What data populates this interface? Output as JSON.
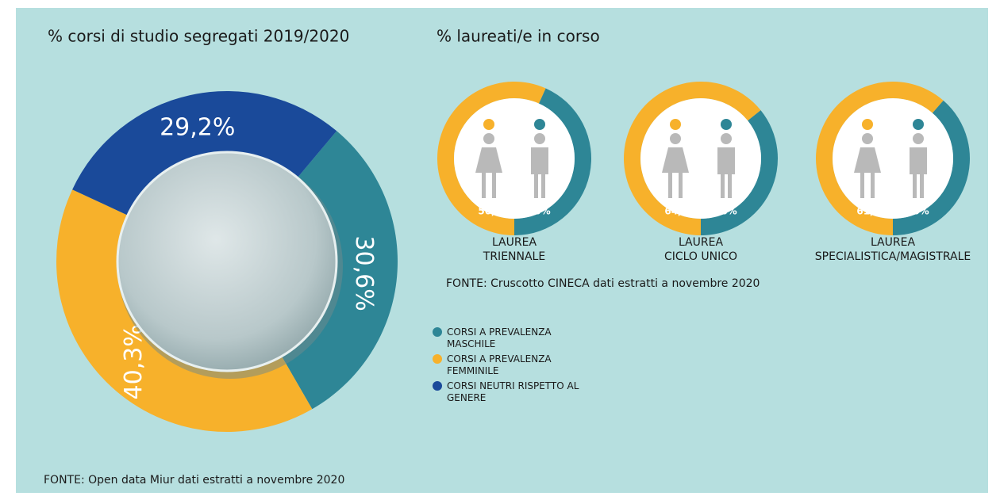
{
  "chart_data": [
    {
      "type": "donut",
      "title": "% corsi di studio segregati 2019/2020",
      "categories": [
        "CORSI A PREVALENZA MASCHILE",
        "CORSI A PREVALENZA FEMMINILE",
        "CORSI NEUTRI RISPETTO AL GENERE"
      ],
      "values": [
        30.6,
        40.3,
        29.2
      ],
      "value_labels": [
        "30,6%",
        "40,3%",
        "29,2%"
      ],
      "colors": [
        "#2e8696",
        "#f7b12b",
        "#1a4a9a"
      ],
      "source": "FONTE: Open data Miur dati estratti a novembre 2020"
    },
    {
      "type": "donut",
      "title": "% laureati/e in corso",
      "label": [
        "LAUREA",
        "TRIENNALE"
      ],
      "values": [
        56.7,
        43.3
      ],
      "value_labels": [
        "56,7%",
        "43,3%"
      ],
      "colors": [
        "#f7b12b",
        "#2e8696"
      ],
      "source": "FONTE: Cruscotto CINECA dati estratti a novembre 2020"
    },
    {
      "type": "donut",
      "label": [
        "LAUREA",
        "CICLO UNICO"
      ],
      "values": [
        64.2,
        35.8
      ],
      "value_labels": [
        "64,2%",
        "35,8%"
      ],
      "colors": [
        "#f7b12b",
        "#2e8696"
      ]
    },
    {
      "type": "donut",
      "label": [
        "LAUREA",
        "SPECIALISTICA/MAGISTRALE"
      ],
      "values": [
        61.4,
        38.6
      ],
      "value_labels": [
        "61,4%",
        "38,6%"
      ],
      "colors": [
        "#f7b12b",
        "#2e8696"
      ]
    }
  ]
}
